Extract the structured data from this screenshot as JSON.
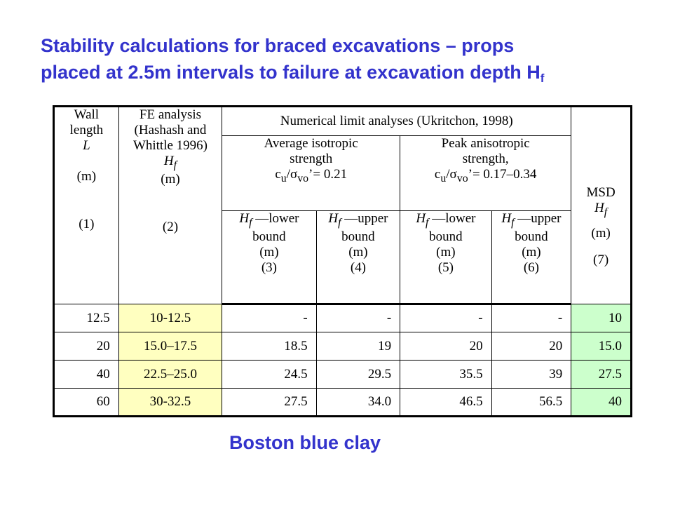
{
  "title": {
    "line1": "Stability calculations  for braced excavations – props",
    "line2": "placed at 2.5m intervals to failure at excavation depth H",
    "line2_sub": "f"
  },
  "table": {
    "col1": {
      "line1": "Wall",
      "line2": "length",
      "line3": "L",
      "unit": "(m)",
      "num": "(1)"
    },
    "col2": {
      "line1": "FE analysis",
      "line2": "(Hashash and",
      "line3": "Whittle 1996)",
      "line4": "H",
      "sub": "f",
      "unit": "(m)",
      "num": "(2)"
    },
    "numerical": "Numerical limit analyses (Ukritchon, 1998)",
    "avg": {
      "line1": "Average isotropic",
      "line2": "strength",
      "line3": "c",
      "sub_u": "u",
      "slash": "/σ",
      "sub_vo": "vo",
      "tail": "’= 0.21"
    },
    "peak": {
      "line1": "Peak anisotropic",
      "line2": "strength,",
      "line3": "c",
      "sub_u": "u",
      "slash": "/σ",
      "sub_vo": "vo",
      "tail": "’= 0.17–0.34"
    },
    "msd": {
      "line1": "MSD",
      "line2": "H",
      "sub": "f",
      "unit": "(m)",
      "num": "(7)"
    },
    "subcols": [
      {
        "h": "H",
        "sub": "f",
        "dash": " —lower",
        "bound": "bound",
        "unit": "(m)",
        "num": "(3)"
      },
      {
        "h": "H",
        "sub": "f",
        "dash": " —upper",
        "bound": "bound",
        "unit": "(m)",
        "num": "(4)"
      },
      {
        "h": "H",
        "sub": "f",
        "dash": " —lower",
        "bound": "bound",
        "unit": "(m)",
        "num": "(5)"
      },
      {
        "h": "H",
        "sub": "f",
        "dash": " —upper",
        "bound": "bound",
        "unit": "(m)",
        "num": "(6)"
      }
    ],
    "rows": [
      [
        "12.5",
        "10-12.5",
        "-",
        "-",
        "-",
        "-",
        "10"
      ],
      [
        "20",
        "15.0–17.5",
        "18.5",
        "19",
        "20",
        "20",
        "15.0"
      ],
      [
        "40",
        "22.5–25.0",
        "24.5",
        "29.5",
        "35.5",
        "39",
        "27.5"
      ],
      [
        "60",
        "30-32.5",
        "27.5",
        "34.0",
        "46.5",
        "56.5",
        "40"
      ]
    ]
  },
  "caption": "Boston blue clay"
}
